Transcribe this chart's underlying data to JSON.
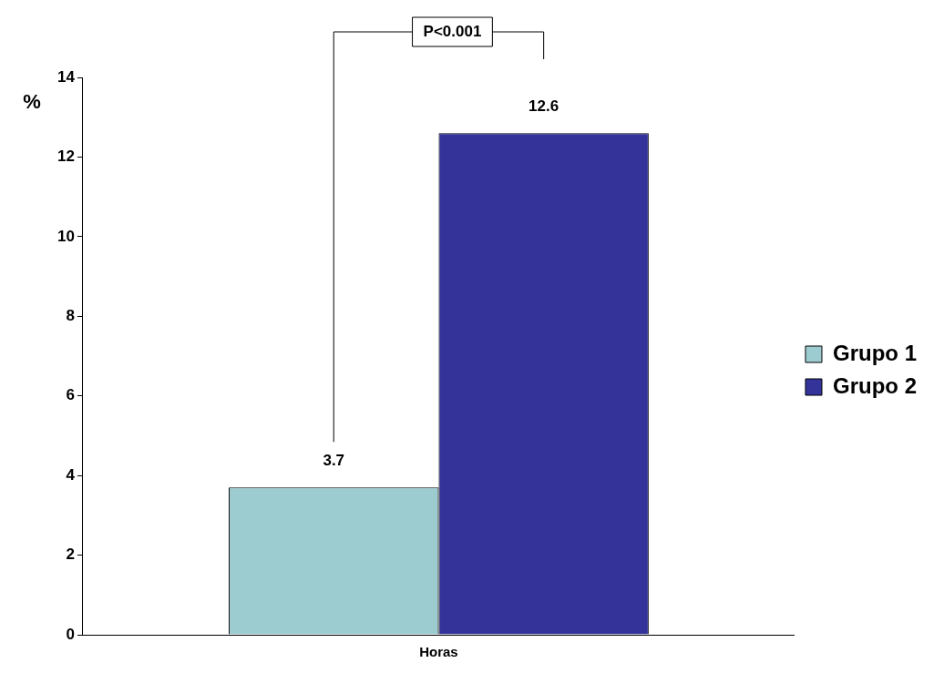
{
  "chart_data": {
    "type": "bar",
    "categories": [
      "Horas"
    ],
    "series": [
      {
        "name": "Grupo 1",
        "color": "#9ccbd0",
        "values": [
          3.7
        ]
      },
      {
        "name": "Grupo 2",
        "color": "#333399",
        "values": [
          12.6
        ]
      }
    ],
    "ylabel": "%",
    "ylim": [
      0,
      14
    ],
    "yticks": [
      0,
      2,
      4,
      6,
      8,
      10,
      12,
      14
    ],
    "grid": false,
    "legend": "right",
    "data_labels": true,
    "annotations": [
      "P<0.001"
    ]
  }
}
